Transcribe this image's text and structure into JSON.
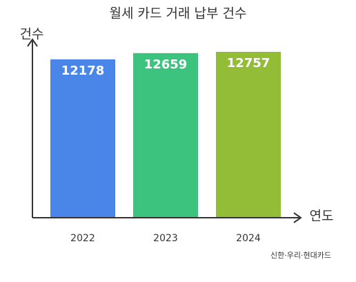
{
  "chart_data": {
    "type": "bar",
    "title": "월세 카드 거래 납부 건수",
    "y_label": "건수",
    "x_label": "연도",
    "source": "신한·우리·현대카드",
    "categories": [
      "2022",
      "2023",
      "2024"
    ],
    "values": [
      12178,
      12659,
      12757
    ],
    "colors": [
      "#4a86e8",
      "#3cc47f",
      "#93bd37"
    ]
  }
}
